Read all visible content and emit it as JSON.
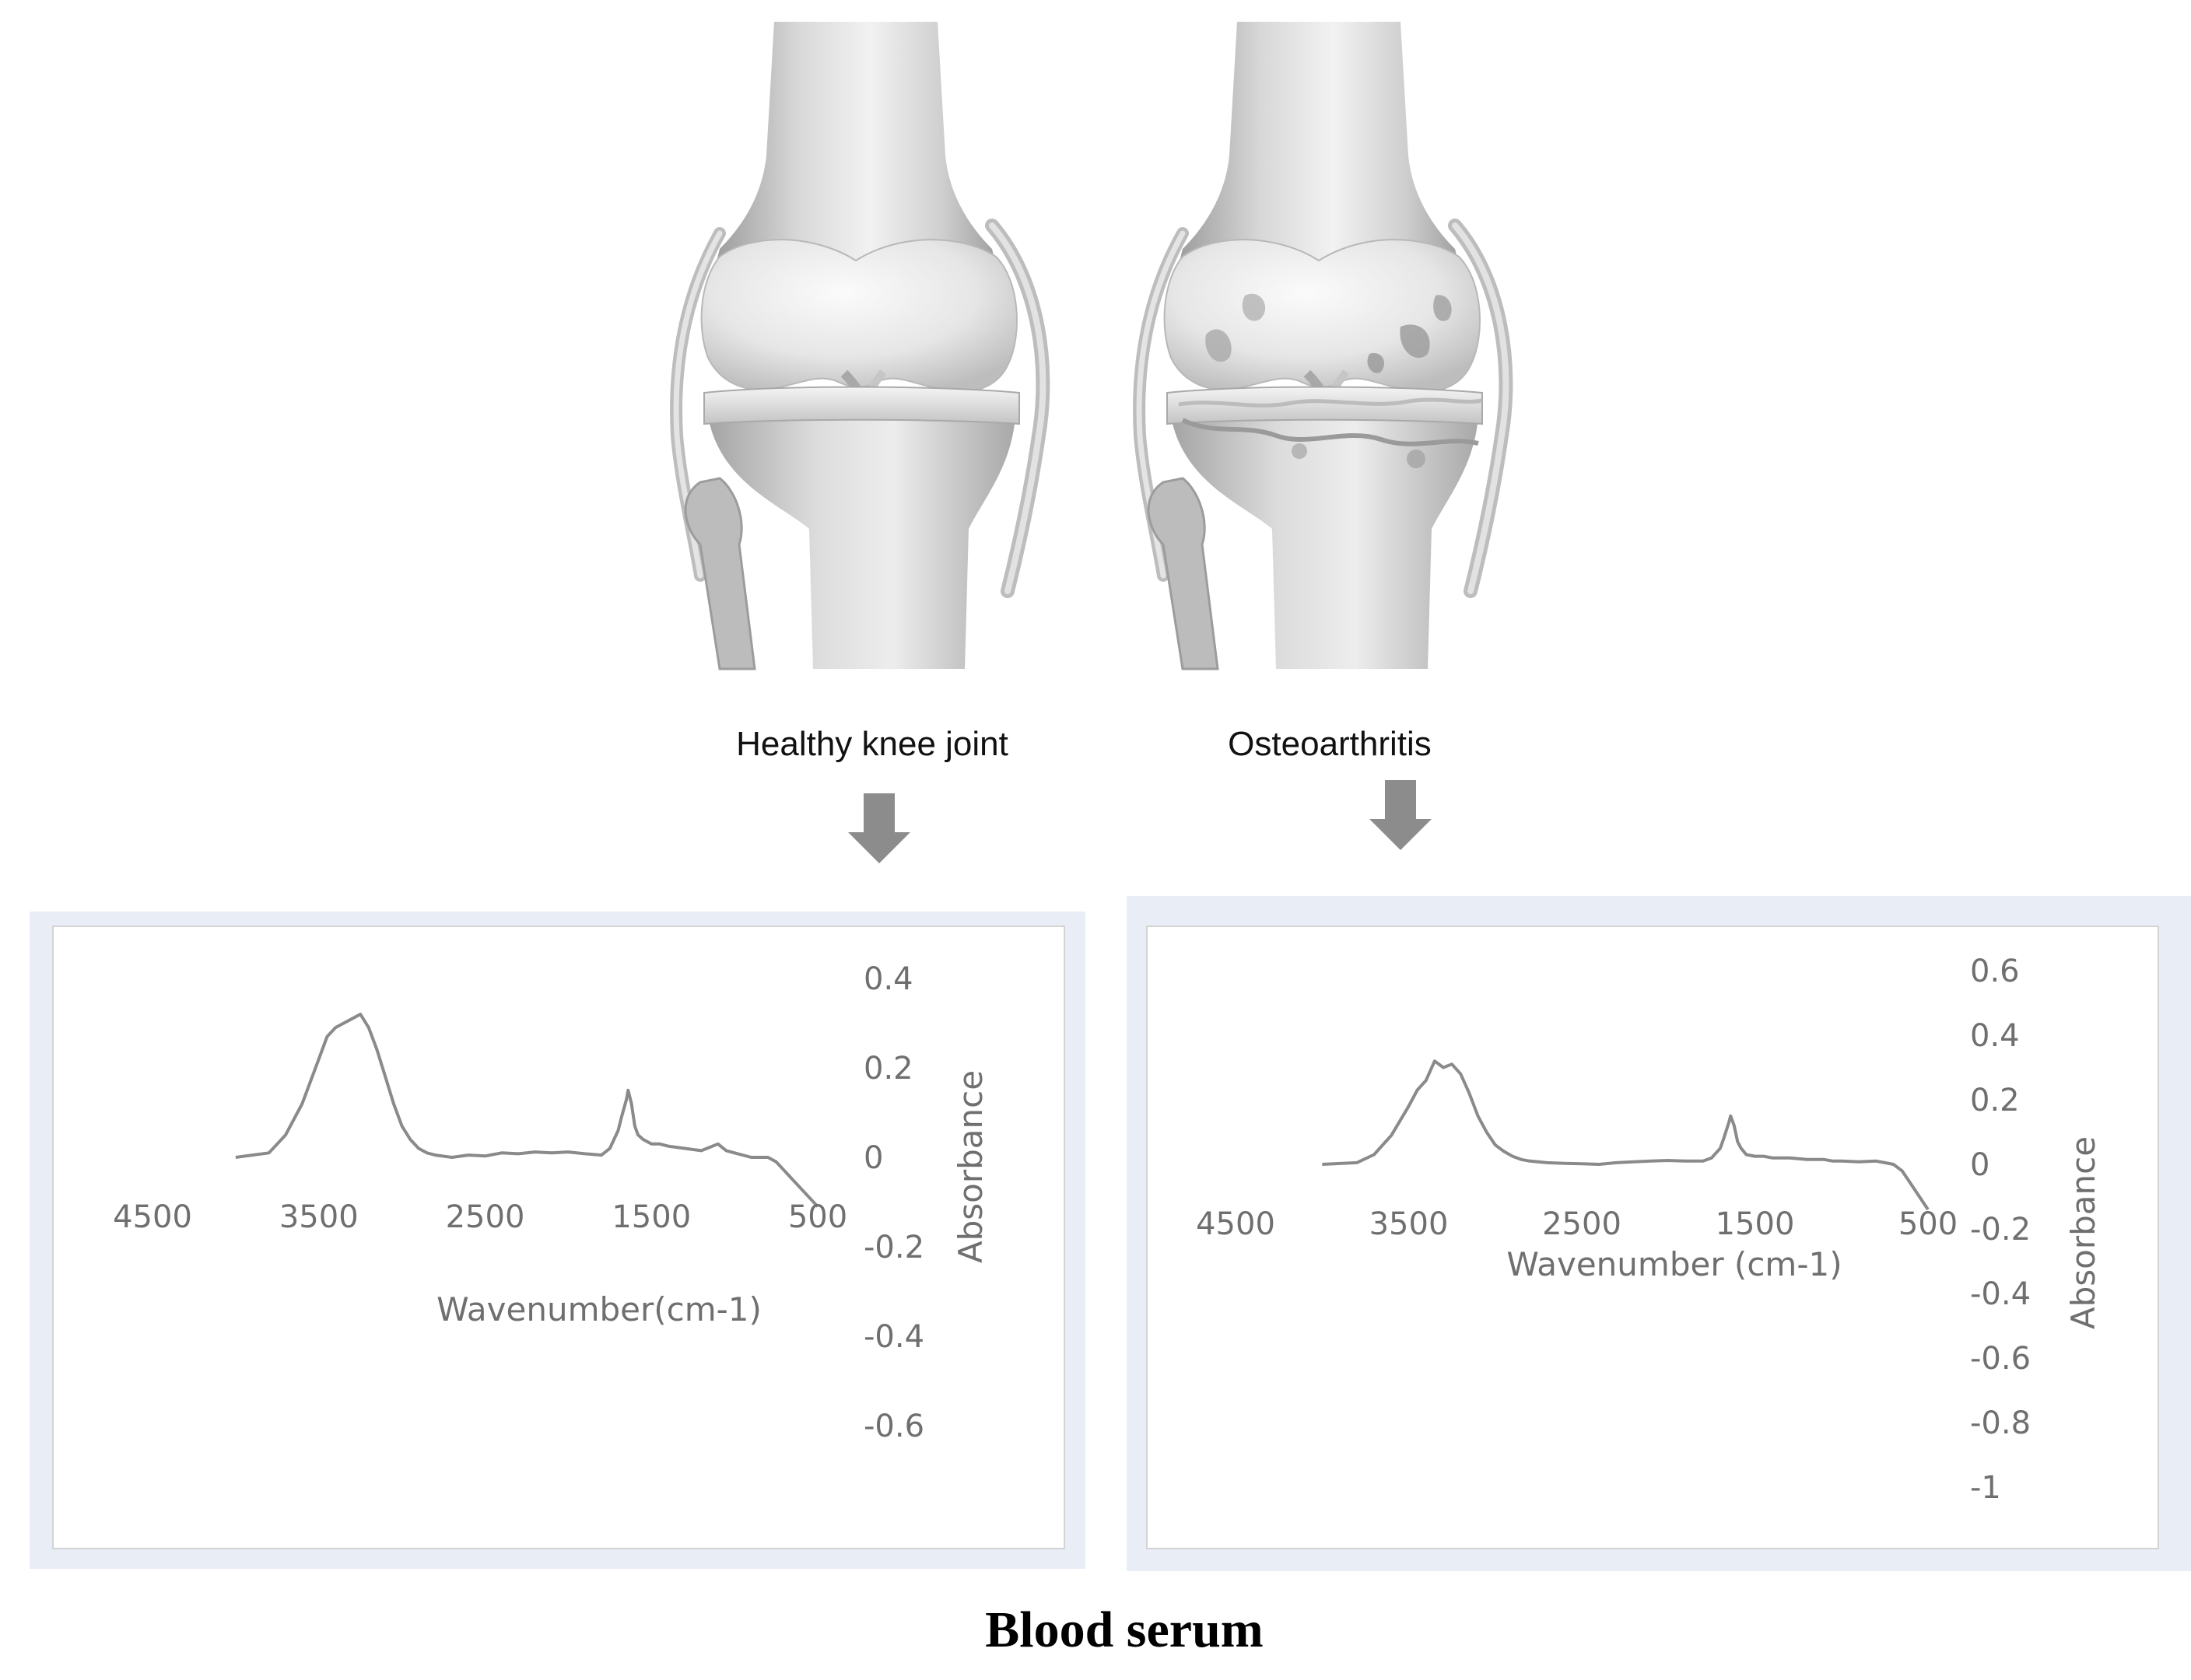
{
  "knees": {
    "healthy_label": "Healthy knee joint",
    "oa_label": "Osteoarthritis"
  },
  "caption": "Blood serum",
  "colors": {
    "bone_light": "#ececec",
    "bone_mid": "#c9c9c9",
    "bone_dark": "#8e8e8e",
    "spectrum_line": "#8a8a8a",
    "arrow": "#8c8c8c",
    "panel_band": "#e8edf6",
    "panel_border": "#d3d3d3",
    "text_gray": "#6f6f6f"
  },
  "chart_data": [
    {
      "type": "line",
      "title": "",
      "xlabel": "Wavenumber(cm-1)",
      "ylabel": "Absorbance",
      "x_reversed": true,
      "xlim": [
        500,
        4500
      ],
      "x_ticks": [
        4500,
        3500,
        2500,
        1500,
        500
      ],
      "x_tick_labels": [
        "4500",
        "3500",
        "2500",
        "1500",
        "500"
      ],
      "ylim": [
        -0.6,
        0.4
      ],
      "y_ticks": [
        0.4,
        0.2,
        0,
        -0.2,
        -0.4,
        -0.6
      ],
      "y_tick_labels": [
        "0.4",
        "0.2",
        "0",
        "-0.2",
        "-0.4",
        "-0.6"
      ],
      "series": [
        {
          "x": [
            4000,
            3800,
            3700,
            3600,
            3500,
            3450,
            3400,
            3350,
            3300,
            3250,
            3200,
            3150,
            3100,
            3050,
            3000,
            2950,
            2900,
            2850,
            2800,
            2700,
            2600,
            2500,
            2400,
            2300,
            2200,
            2100,
            2000,
            1900,
            1800,
            1750,
            1700,
            1680,
            1650,
            1640,
            1620,
            1600,
            1580,
            1550,
            1500,
            1450,
            1400,
            1300,
            1200,
            1100,
            1050,
            1000,
            900,
            800,
            750,
            700,
            650,
            600,
            550,
            500
          ],
          "y": [
            0.0,
            0.01,
            0.05,
            0.12,
            0.22,
            0.27,
            0.29,
            0.3,
            0.31,
            0.32,
            0.29,
            0.24,
            0.18,
            0.12,
            0.07,
            0.04,
            0.02,
            0.01,
            0.005,
            0.0,
            0.005,
            0.003,
            0.01,
            0.008,
            0.012,
            0.01,
            0.012,
            0.008,
            0.005,
            0.02,
            0.06,
            0.09,
            0.13,
            0.15,
            0.12,
            0.07,
            0.05,
            0.04,
            0.03,
            0.03,
            0.025,
            0.02,
            0.015,
            0.03,
            0.015,
            0.01,
            0.0,
            0.0,
            -0.01,
            -0.03,
            -0.05,
            -0.07,
            -0.09,
            -0.11
          ]
        }
      ]
    },
    {
      "type": "line",
      "title": "",
      "xlabel": "Wavenumber (cm-1)",
      "ylabel": "Absorbance",
      "x_reversed": true,
      "xlim": [
        500,
        4500
      ],
      "x_ticks": [
        4500,
        3500,
        2500,
        1500,
        500
      ],
      "x_tick_labels": [
        "4500",
        "3500",
        "2500",
        "1500",
        "500"
      ],
      "ylim": [
        -1,
        0.6
      ],
      "y_ticks": [
        0.6,
        0.4,
        0.2,
        0,
        -0.2,
        -0.4,
        -0.6,
        -0.8,
        -1
      ],
      "y_tick_labels": [
        "0.6",
        "0.4",
        "0.2",
        "0",
        "-0.2",
        "-0.4",
        "-0.6",
        "-0.8",
        "-1"
      ],
      "series": [
        {
          "x": [
            4000,
            3800,
            3700,
            3600,
            3500,
            3450,
            3400,
            3350,
            3300,
            3250,
            3200,
            3150,
            3100,
            3050,
            3000,
            2950,
            2900,
            2850,
            2800,
            2700,
            2600,
            2500,
            2400,
            2300,
            2200,
            2100,
            2000,
            1900,
            1800,
            1750,
            1700,
            1680,
            1650,
            1640,
            1620,
            1600,
            1580,
            1550,
            1500,
            1450,
            1400,
            1300,
            1200,
            1100,
            1050,
            1000,
            900,
            800,
            750,
            700,
            650,
            600,
            550,
            500
          ],
          "y": [
            0.0,
            0.005,
            0.03,
            0.09,
            0.18,
            0.23,
            0.26,
            0.32,
            0.3,
            0.31,
            0.28,
            0.22,
            0.15,
            0.1,
            0.06,
            0.04,
            0.025,
            0.015,
            0.01,
            0.005,
            0.003,
            0.002,
            0.0,
            0.005,
            0.008,
            0.01,
            0.012,
            0.01,
            0.01,
            0.02,
            0.05,
            0.08,
            0.13,
            0.15,
            0.12,
            0.07,
            0.05,
            0.03,
            0.025,
            0.025,
            0.02,
            0.02,
            0.015,
            0.015,
            0.01,
            0.01,
            0.008,
            0.01,
            0.005,
            0.0,
            -0.02,
            -0.06,
            -0.1,
            -0.14
          ]
        }
      ]
    }
  ]
}
